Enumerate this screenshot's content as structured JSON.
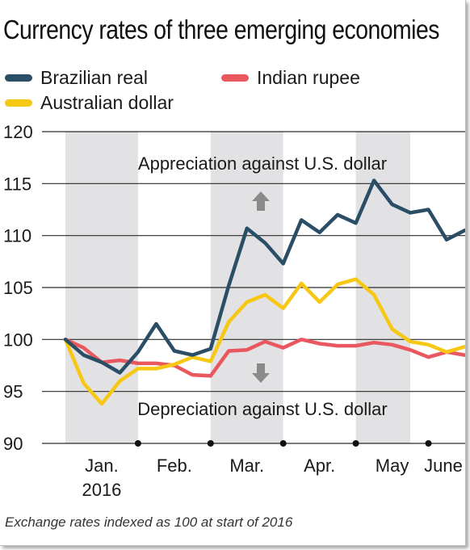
{
  "title": "Currency rates of three emerging economies",
  "footnote": "Exchange rates indexed as 100 at start of 2016",
  "annotations": {
    "appreciation": "Appreciation against U.S. dollar",
    "depreciation": "Depreciation against U.S. dollar"
  },
  "colors": {
    "brazil": "#2a4e66",
    "india": "#e8585e",
    "australia": "#f6c814",
    "shade": "#e2e2e4",
    "grid": "#2b2b2b",
    "arrow": "#8a8a8a"
  },
  "icons": {
    "up": "arrow-up-icon",
    "down": "arrow-down-icon"
  },
  "chart_data": {
    "type": "line",
    "title": "Currency rates of three emerging economies",
    "ylim": [
      90,
      120
    ],
    "yticks": [
      90,
      95,
      100,
      105,
      110,
      115,
      120
    ],
    "month_labels": [
      "Jan.",
      "Feb.",
      "Mar.",
      "Apr.",
      "May",
      "June"
    ],
    "year_label": "2016",
    "x_range": [
      0,
      21
    ],
    "month_boundaries": [
      4,
      8,
      12,
      16,
      20
    ],
    "shaded_months": [
      "Jan.",
      "Mar.",
      "May"
    ],
    "legend": [
      {
        "name": "Brazilian real",
        "color": "#2a4e66"
      },
      {
        "name": "Indian rupee",
        "color": "#e8585e"
      },
      {
        "name": "Australian dollar",
        "color": "#f6c814"
      }
    ],
    "series": [
      {
        "name": "Brazilian real",
        "color": "#2a4e66",
        "values": [
          100,
          98.5,
          97.8,
          96.8,
          98.8,
          101.5,
          98.9,
          98.5,
          99.1,
          105.2,
          110.7,
          109.3,
          107.3,
          111.5,
          110.3,
          112.0,
          111.2,
          115.3,
          113.0,
          112.2,
          112.5,
          109.6,
          110.5
        ]
      },
      {
        "name": "Indian rupee",
        "color": "#e8585e",
        "values": [
          100,
          99.2,
          97.8,
          98.0,
          97.7,
          97.7,
          97.5,
          96.6,
          96.5,
          98.9,
          99.0,
          99.8,
          99.2,
          100.0,
          99.6,
          99.4,
          99.4,
          99.7,
          99.5,
          99.0,
          98.3,
          98.8,
          98.5
        ]
      },
      {
        "name": "Australian dollar",
        "color": "#f6c814",
        "values": [
          100,
          95.8,
          93.8,
          96.0,
          97.2,
          97.2,
          97.6,
          98.3,
          97.9,
          101.7,
          103.6,
          104.3,
          103.0,
          105.4,
          103.6,
          105.3,
          105.8,
          104.3,
          101.0,
          99.8,
          99.5,
          98.8,
          99.3
        ]
      }
    ]
  }
}
